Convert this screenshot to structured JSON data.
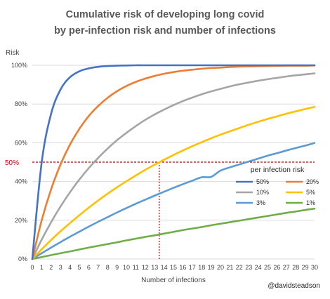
{
  "chart_data": {
    "type": "line",
    "title_lines": [
      "Cumulative risk of developing long covid",
      "by per-infection risk and number of infections"
    ],
    "xlabel": "Number of infections",
    "ylabel": "Risk",
    "xlim": [
      0,
      30
    ],
    "ylim": [
      0,
      100
    ],
    "x_ticks": [
      "0",
      "1",
      "2",
      "3",
      "4",
      "5",
      "6",
      "7",
      "8",
      "9",
      "10",
      "11",
      "12",
      "13",
      "14",
      "15",
      "16",
      "17",
      "18",
      "19",
      "20",
      "21",
      "22",
      "23",
      "24",
      "25",
      "26",
      "27",
      "28",
      "29",
      "30"
    ],
    "y_ticks": [
      {
        "value": 0,
        "label": "0%"
      },
      {
        "value": 20,
        "label": "20%"
      },
      {
        "value": 40,
        "label": "40%"
      },
      {
        "value": 60,
        "label": "60%"
      },
      {
        "value": 80,
        "label": "80%"
      },
      {
        "value": 100,
        "label": "100%"
      }
    ],
    "grid": {
      "horizontal": true,
      "vertical": false,
      "color": "#d9d9d9"
    },
    "legend": {
      "title": "per infection risk",
      "placement": "right-middle",
      "columns": 2
    },
    "x": [
      0,
      1,
      2,
      3,
      4,
      5,
      6,
      7,
      8,
      9,
      10,
      11,
      12,
      13,
      14,
      15,
      16,
      17,
      18,
      19,
      20,
      21,
      22,
      23,
      24,
      25,
      26,
      27,
      28,
      29,
      30
    ],
    "series": [
      {
        "name": "50%",
        "color": "#4472c4",
        "values": [
          0,
          50,
          75,
          87.5,
          93.8,
          96.9,
          98.4,
          99.2,
          99.6,
          99.8,
          99.9,
          100,
          100,
          100,
          100,
          100,
          100,
          100,
          100,
          100,
          100,
          100,
          100,
          100,
          100,
          100,
          100,
          100,
          100,
          100,
          100
        ]
      },
      {
        "name": "20%",
        "color": "#ed7d31",
        "values": [
          0,
          20,
          36,
          48.8,
          59,
          67.2,
          73.8,
          79,
          83.2,
          86.6,
          89.3,
          91.4,
          93.1,
          94.5,
          95.6,
          96.5,
          97.2,
          97.7,
          98.2,
          98.6,
          98.8,
          99.1,
          99.3,
          99.4,
          99.5,
          99.6,
          99.7,
          99.8,
          99.8,
          99.8,
          99.9
        ]
      },
      {
        "name": "10%",
        "color": "#a5a5a5",
        "values": [
          0,
          10,
          19,
          27.1,
          34.4,
          41,
          46.9,
          52.2,
          57,
          61.3,
          65.1,
          68.6,
          71.8,
          74.6,
          77.1,
          79.4,
          81.5,
          83.3,
          85,
          86.5,
          87.8,
          89.1,
          90.2,
          91.1,
          92,
          92.8,
          93.5,
          94.2,
          94.8,
          95.3,
          95.8
        ]
      },
      {
        "name": "5%",
        "color": "#ffc000",
        "values": [
          0,
          5,
          9.8,
          14.3,
          18.5,
          22.6,
          26.5,
          30.2,
          33.7,
          37,
          40.1,
          43.1,
          46,
          48.7,
          51.2,
          53.7,
          56,
          58.2,
          60.3,
          62.3,
          64.2,
          65.9,
          67.6,
          69.3,
          70.8,
          72.3,
          73.6,
          75,
          76.2,
          77.4,
          78.5
        ]
      },
      {
        "name": "3%",
        "color": "#5b9bd5",
        "values": [
          0,
          3,
          5.9,
          8.7,
          11.5,
          14.1,
          16.7,
          19.2,
          21.6,
          24,
          26.3,
          28.5,
          30.6,
          32.7,
          34.7,
          36.7,
          38.6,
          40.4,
          42.2,
          42.4,
          45.6,
          47.3,
          48.8,
          50.3,
          51.8,
          53.3,
          54.6,
          56,
          57.3,
          58.5,
          59.9
        ]
      },
      {
        "name": "1%",
        "color": "#70ad47",
        "values": [
          0,
          1,
          2,
          3,
          3.9,
          4.9,
          5.9,
          6.8,
          7.7,
          8.6,
          9.6,
          10.5,
          11.4,
          12.2,
          13.1,
          14,
          14.9,
          15.7,
          16.5,
          17.4,
          18.2,
          19,
          19.8,
          20.6,
          21.4,
          22.2,
          23,
          23.8,
          24.5,
          25.3,
          26
        ]
      }
    ],
    "annotations": [
      {
        "label": "50%",
        "y": 50,
        "x_intersect": 13.5,
        "color": "#c00000",
        "style": "dashed"
      }
    ]
  },
  "credit": "@davidsteadson"
}
